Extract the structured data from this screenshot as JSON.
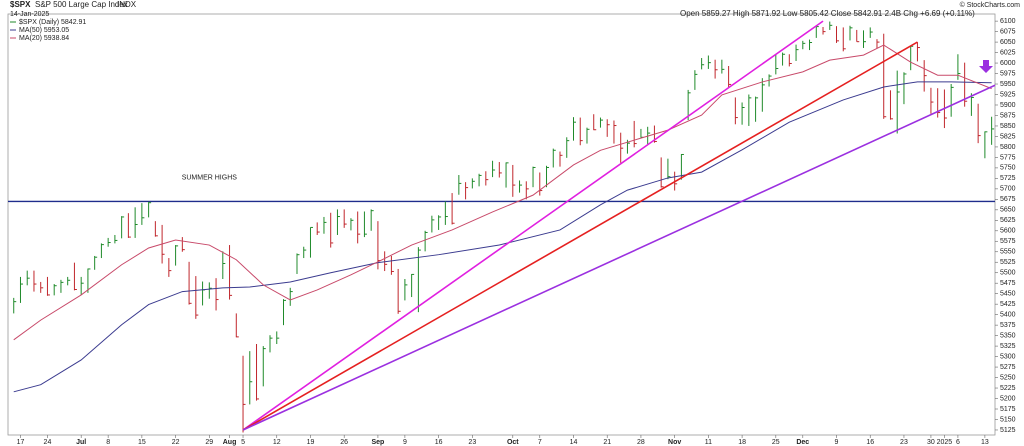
{
  "chart_data": {
    "type": "ohlc",
    "ticker": "$SPX",
    "name": "S&P 500 Large Cap Index",
    "exchange": "INDX",
    "date": "14-Jan-2025",
    "quote": "Open 5859.27  High 5871.92  Low 5805.42  Close 5842.91  2.4B  Chg +6.69 (+0.11%)",
    "credit": "© StockCharts.com",
    "price_name": "$SPX (Daily) 5842.91",
    "categories": [
      null,
      "17",
      null,
      null,
      null,
      "24",
      null,
      null,
      null,
      null,
      "Jul",
      null,
      null,
      null,
      "8",
      null,
      null,
      null,
      null,
      "15",
      null,
      null,
      null,
      null,
      "22",
      null,
      null,
      null,
      null,
      "29",
      null,
      null,
      "Aug",
      null,
      "5",
      null,
      null,
      null,
      null,
      "12",
      null,
      null,
      null,
      null,
      "19",
      null,
      null,
      null,
      null,
      "26",
      null,
      null,
      null,
      null,
      "Sep",
      null,
      null,
      null,
      "9",
      null,
      null,
      null,
      null,
      "16",
      null,
      null,
      null,
      null,
      "23",
      null,
      null,
      null,
      null,
      null,
      "Oct",
      null,
      null,
      null,
      "7",
      null,
      null,
      null,
      null,
      "14",
      null,
      null,
      null,
      null,
      "21",
      null,
      null,
      null,
      null,
      "28",
      null,
      null,
      null,
      null,
      "Nov",
      null,
      null,
      null,
      null,
      "11",
      null,
      null,
      null,
      null,
      "18",
      null,
      null,
      null,
      null,
      "25",
      null,
      null,
      null,
      "Dec",
      null,
      null,
      null,
      null,
      "9",
      null,
      null,
      null,
      null,
      "16",
      null,
      null,
      null,
      null,
      "23",
      null,
      null,
      null,
      "30",
      null,
      "2025",
      null,
      "6",
      null,
      null,
      null,
      "13",
      null
    ],
    "high": [
      5440,
      5490,
      5505,
      5505,
      5478,
      5490,
      5473,
      5483,
      5490,
      5524,
      5490,
      5510,
      5540,
      5570,
      5583,
      5590,
      5635,
      5642,
      5656,
      5666,
      5669,
      5623,
      5614,
      5535,
      5566,
      5585,
      5526,
      5492,
      5479,
      5477,
      5487,
      5551,
      5566,
      5403,
      5302,
      5313,
      5330,
      5325,
      5351,
      5360,
      5437,
      5464,
      5546,
      5562,
      5608,
      5620,
      5633,
      5643,
      5651,
      5651,
      5630,
      5646,
      5646,
      5651,
      5623,
      5551,
      5540,
      5509,
      5485,
      5497,
      5561,
      5600,
      5636,
      5637,
      5670,
      5690,
      5733,
      5716,
      5725,
      5736,
      5742,
      5767,
      5764,
      5763,
      5757,
      5720,
      5718,
      5753,
      5739,
      5755,
      5796,
      5789,
      5823,
      5871,
      5870,
      5846,
      5878,
      5870,
      5866,
      5863,
      5834,
      5817,
      5862,
      5843,
      5848,
      5851,
      5775,
      5772,
      5741,
      5783,
      5936,
      5983,
      6012,
      6018,
      6008,
      6008,
      5993,
      5918,
      5906,
      5925,
      5920,
      5964,
      5973,
      6020,
      6025,
      6021,
      6044,
      6053,
      6056,
      6087,
      6086,
      6099,
      6088,
      6085,
      6089,
      6079,
      6078,
      6085,
      6057,
      6070,
      5935,
      5982,
      5978,
      6040,
      6050,
      6007,
      5941,
      5940,
      5937,
      5950,
      6021,
      6001,
      5928,
      5903,
      5837,
      5872
    ],
    "low": [
      5403,
      5428,
      5470,
      5455,
      5452,
      5445,
      5446,
      5452,
      5470,
      5458,
      5447,
      5452,
      5507,
      5535,
      5562,
      5570,
      5582,
      5583,
      5583,
      5614,
      5632,
      5586,
      5522,
      5490,
      5517,
      5550,
      5424,
      5390,
      5422,
      5438,
      5410,
      5485,
      5436,
      5346,
      5119,
      5186,
      5195,
      5229,
      5310,
      5330,
      5375,
      5421,
      5497,
      5535,
      5536,
      5590,
      5593,
      5560,
      5590,
      5607,
      5601,
      5570,
      5585,
      5600,
      5508,
      5504,
      5495,
      5402,
      5434,
      5442,
      5406,
      5551,
      5596,
      5602,
      5614,
      5615,
      5686,
      5675,
      5701,
      5706,
      5708,
      5728,
      5727,
      5703,
      5681,
      5691,
      5675,
      5704,
      5684,
      5704,
      5751,
      5753,
      5774,
      5815,
      5804,
      5808,
      5840,
      5846,
      5824,
      5808,
      5762,
      5784,
      5799,
      5822,
      5806,
      5810,
      5703,
      5723,
      5696,
      5722,
      5864,
      5936,
      5985,
      5986,
      5963,
      5975,
      5942,
      5854,
      5853,
      5850,
      5860,
      5884,
      5944,
      5973,
      5994,
      5992,
      6005,
      6033,
      6031,
      6060,
      6068,
      6079,
      6048,
      6028,
      6054,
      6051,
      6036,
      6060,
      6035,
      5867,
      5865,
      5832,
      5902,
      5983,
      6004,
      5932,
      5879,
      5870,
      5845,
      5872,
      5960,
      5896,
      5874,
      5809,
      5773,
      5805
    ],
    "close": [
      5431,
      5473,
      5487,
      5473,
      5464,
      5447,
      5469,
      5477,
      5482,
      5460,
      5475,
      5509,
      5537,
      5567,
      5572,
      5577,
      5633,
      5585,
      5615,
      5631,
      5667,
      5588,
      5544,
      5505,
      5564,
      5555,
      5427,
      5399,
      5459,
      5463,
      5436,
      5522,
      5446,
      5347,
      5186,
      5240,
      5199,
      5319,
      5344,
      5344,
      5434,
      5455,
      5543,
      5554,
      5608,
      5597,
      5620,
      5571,
      5634,
      5616,
      5625,
      5592,
      5592,
      5648,
      5529,
      5520,
      5503,
      5408,
      5471,
      5496,
      5554,
      5596,
      5626,
      5633,
      5634,
      5618,
      5713,
      5703,
      5718,
      5732,
      5722,
      5745,
      5738,
      5762,
      5709,
      5709,
      5700,
      5751,
      5696,
      5751,
      5792,
      5780,
      5815,
      5859,
      5815,
      5842,
      5841,
      5864,
      5853,
      5851,
      5797,
      5809,
      5808,
      5823,
      5833,
      5813,
      5705,
      5729,
      5712,
      5782,
      5929,
      5973,
      5996,
      6001,
      5984,
      5985,
      5949,
      5870,
      5894,
      5917,
      5917,
      5948,
      5969,
      5987,
      6021,
      5999,
      6032,
      6047,
      6049,
      6087,
      6075,
      6090,
      6053,
      6034,
      6084,
      6051,
      6051,
      6074,
      6050,
      5872,
      5867,
      5931,
      5974,
      6040,
      6037,
      5970,
      5907,
      5882,
      5869,
      5942,
      5975,
      5909,
      5918,
      5827,
      5836,
      5842.91
    ],
    "up_color": "#1f8a2a",
    "down_color": "#c0262c",
    "series": [
      {
        "name": "MA(50) 5953.05",
        "color": "#3b3b8f",
        "x": [
          0,
          4,
          10,
          16,
          20,
          25,
          31,
          35,
          41,
          47,
          54,
          63,
          72,
          81,
          87,
          91,
          97,
          102,
          108,
          115,
          123,
          129,
          134,
          139,
          145
        ],
        "values": [
          5216,
          5233,
          5292,
          5376,
          5424,
          5455,
          5464,
          5466,
          5478,
          5500,
          5524,
          5543,
          5566,
          5602,
          5662,
          5697,
          5726,
          5740,
          5793,
          5859,
          5912,
          5943,
          5955,
          5955,
          5953
        ]
      },
      {
        "name": "MA(20) 5938.84",
        "color": "#c84a6a",
        "x": [
          0,
          4,
          10,
          16,
          20,
          24,
          29,
          33,
          37,
          41,
          45,
          50,
          54,
          59,
          65,
          71,
          77,
          83,
          87,
          93,
          97,
          102,
          105,
          111,
          117,
          121,
          126,
          129,
          133,
          137,
          140,
          145
        ],
        "values": [
          5340,
          5387,
          5447,
          5519,
          5559,
          5578,
          5566,
          5531,
          5471,
          5435,
          5459,
          5495,
          5526,
          5566,
          5602,
          5645,
          5685,
          5757,
          5792,
          5821,
          5840,
          5876,
          5924,
          5955,
          5979,
          6007,
          6019,
          6043,
          6002,
          5971,
          5971,
          5939
        ]
      }
    ],
    "trendlines": [
      {
        "color": "#e020e0",
        "x": [
          34,
          120
        ],
        "values": [
          5125,
          6100
        ]
      },
      {
        "color": "#e52020",
        "x": [
          34,
          134
        ],
        "values": [
          5125,
          6050
        ]
      },
      {
        "color": "#9b30e0",
        "x": [
          34,
          145.5
        ],
        "values": [
          5125,
          5947
        ]
      }
    ],
    "hline": {
      "value": 5670,
      "color": "#1f2d8c",
      "label": "SUMMER HIGHS"
    },
    "xlim": [
      -0.85,
      145.5
    ],
    "ylim": [
      5113,
      6117
    ],
    "yticks": [
      5125,
      5150,
      5175,
      5200,
      5225,
      5250,
      5275,
      5300,
      5325,
      5350,
      5375,
      5400,
      5425,
      5450,
      5475,
      5500,
      5525,
      5550,
      5575,
      5600,
      5625,
      5650,
      5675,
      5700,
      5725,
      5750,
      5775,
      5800,
      5825,
      5850,
      5875,
      5900,
      5925,
      5950,
      5975,
      6000,
      6025,
      6050,
      6075,
      6100
    ],
    "grid": false
  }
}
